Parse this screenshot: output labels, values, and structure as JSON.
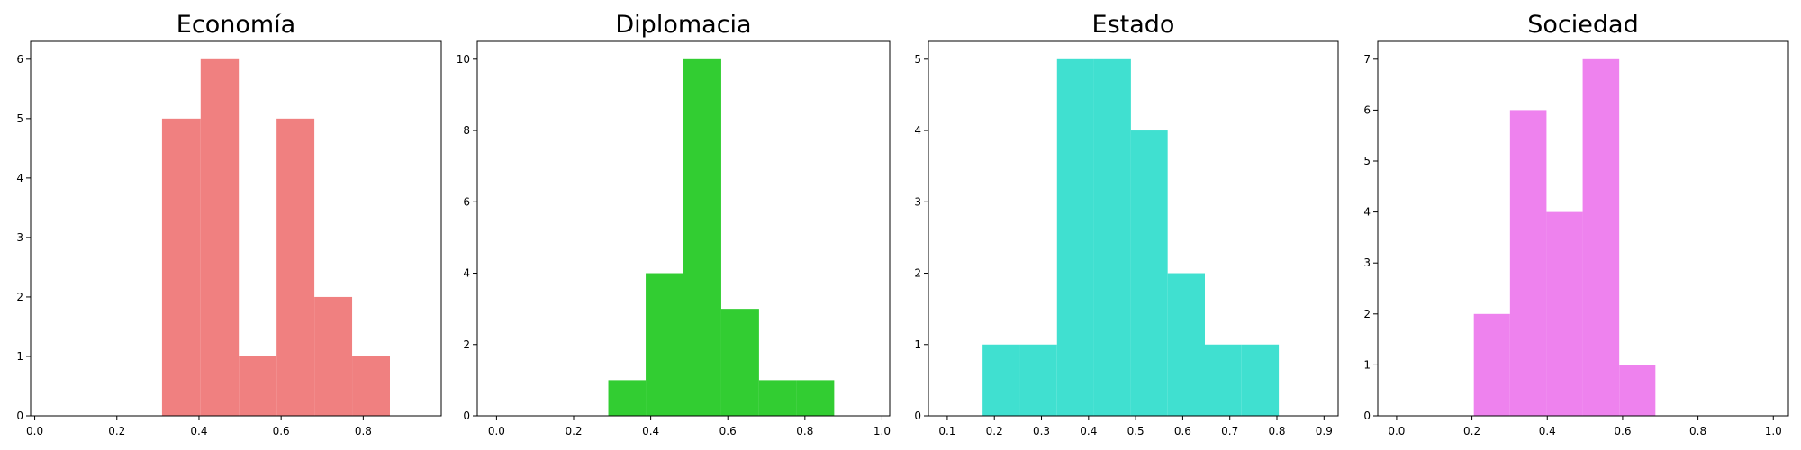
{
  "chart_data": [
    {
      "type": "bar",
      "title": "Economía",
      "color": "#f08080",
      "xlim": [
        -0.01,
        0.99
      ],
      "ylim": [
        0,
        6.3
      ],
      "xticks": [
        0.0,
        0.2,
        0.4,
        0.6,
        0.8
      ],
      "xtick_labels": [
        "0.0",
        "0.2",
        "0.4",
        "0.6",
        "0.8"
      ],
      "yticks": [
        0,
        1,
        2,
        3,
        4,
        5,
        6
      ],
      "ytick_labels": [
        "0",
        "1",
        "2",
        "3",
        "4",
        "5",
        "6"
      ],
      "bins": [
        {
          "x0": 0.31,
          "x1": 0.404,
          "count": 5
        },
        {
          "x0": 0.404,
          "x1": 0.497,
          "count": 6
        },
        {
          "x0": 0.497,
          "x1": 0.589,
          "count": 1
        },
        {
          "x0": 0.589,
          "x1": 0.681,
          "count": 5
        },
        {
          "x0": 0.681,
          "x1": 0.773,
          "count": 2
        },
        {
          "x0": 0.773,
          "x1": 0.865,
          "count": 1
        }
      ]
    },
    {
      "type": "bar",
      "title": "Diplomacia",
      "color": "#32cd32",
      "xlim": [
        -0.05,
        1.02
      ],
      "ylim": [
        0,
        10.5
      ],
      "xticks": [
        0.0,
        0.2,
        0.4,
        0.6,
        0.8,
        1.0
      ],
      "xtick_labels": [
        "0.0",
        "0.2",
        "0.4",
        "0.6",
        "0.8",
        "1.0"
      ],
      "yticks": [
        0,
        2,
        4,
        6,
        8,
        10
      ],
      "ytick_labels": [
        "0",
        "2",
        "4",
        "6",
        "8",
        "10"
      ],
      "bins": [
        {
          "x0": 0.29,
          "x1": 0.387,
          "count": 1
        },
        {
          "x0": 0.387,
          "x1": 0.485,
          "count": 4
        },
        {
          "x0": 0.485,
          "x1": 0.583,
          "count": 10
        },
        {
          "x0": 0.583,
          "x1": 0.681,
          "count": 3
        },
        {
          "x0": 0.681,
          "x1": 0.778,
          "count": 1
        },
        {
          "x0": 0.778,
          "x1": 0.876,
          "count": 1
        }
      ]
    },
    {
      "type": "bar",
      "title": "Estado",
      "color": "#40e0d0",
      "xlim": [
        0.06,
        0.93
      ],
      "ylim": [
        0,
        5.25
      ],
      "xticks": [
        0.1,
        0.2,
        0.3,
        0.4,
        0.5,
        0.6,
        0.7,
        0.8,
        0.9
      ],
      "xtick_labels": [
        "0.1",
        "0.2",
        "0.3",
        "0.4",
        "0.5",
        "0.6",
        "0.7",
        "0.8",
        "0.9"
      ],
      "yticks": [
        0,
        1,
        2,
        3,
        4,
        5
      ],
      "ytick_labels": [
        "0",
        "1",
        "2",
        "3",
        "4",
        "5"
      ],
      "bins": [
        {
          "x0": 0.175,
          "x1": 0.254,
          "count": 1
        },
        {
          "x0": 0.254,
          "x1": 0.333,
          "count": 1
        },
        {
          "x0": 0.333,
          "x1": 0.411,
          "count": 5
        },
        {
          "x0": 0.411,
          "x1": 0.49,
          "count": 5
        },
        {
          "x0": 0.49,
          "x1": 0.568,
          "count": 4
        },
        {
          "x0": 0.568,
          "x1": 0.647,
          "count": 2
        },
        {
          "x0": 0.647,
          "x1": 0.725,
          "count": 1
        },
        {
          "x0": 0.725,
          "x1": 0.804,
          "count": 1
        }
      ]
    },
    {
      "type": "bar",
      "title": "Sociedad",
      "color": "#ee82ee",
      "xlim": [
        -0.05,
        1.04
      ],
      "ylim": [
        0,
        7.35
      ],
      "xticks": [
        0.0,
        0.2,
        0.4,
        0.6,
        0.8,
        1.0
      ],
      "xtick_labels": [
        "0.0",
        "0.2",
        "0.4",
        "0.6",
        "0.8",
        "1.0"
      ],
      "yticks": [
        0,
        1,
        2,
        3,
        4,
        5,
        6,
        7
      ],
      "ytick_labels": [
        "0",
        "1",
        "2",
        "3",
        "4",
        "5",
        "6",
        "7"
      ],
      "bins": [
        {
          "x0": 0.205,
          "x1": 0.301,
          "count": 2
        },
        {
          "x0": 0.301,
          "x1": 0.398,
          "count": 6
        },
        {
          "x0": 0.398,
          "x1": 0.494,
          "count": 4
        },
        {
          "x0": 0.494,
          "x1": 0.591,
          "count": 7
        },
        {
          "x0": 0.591,
          "x1": 0.687,
          "count": 1
        }
      ]
    }
  ]
}
